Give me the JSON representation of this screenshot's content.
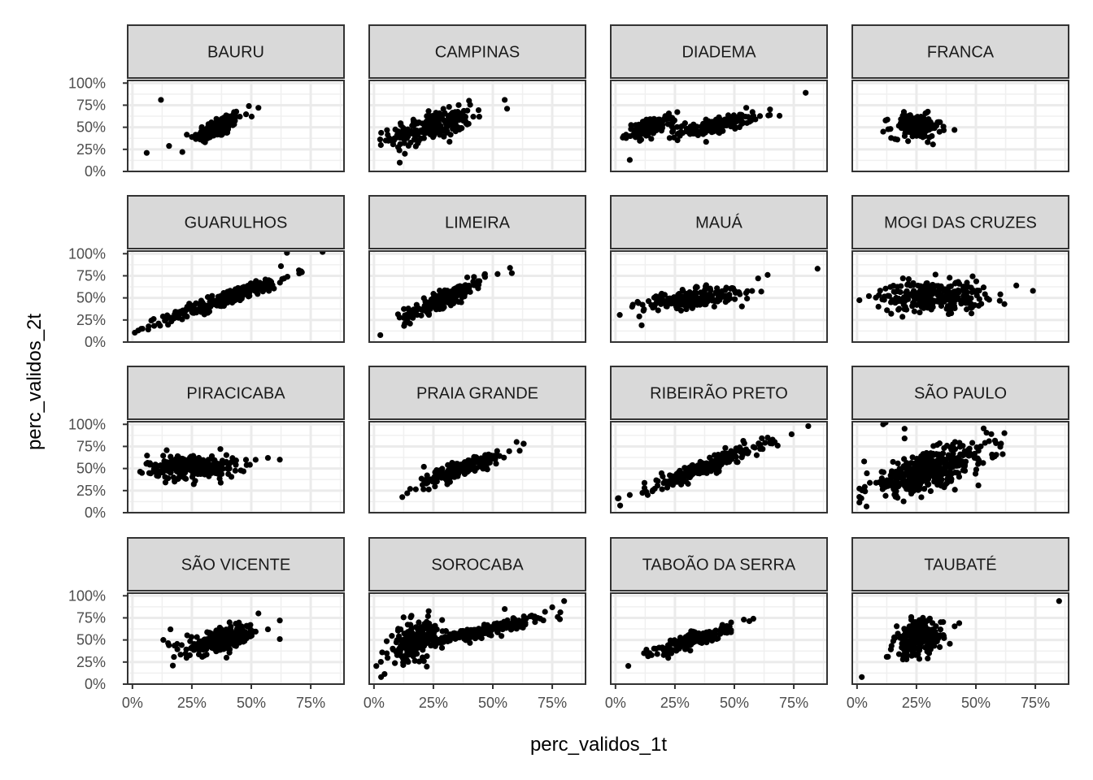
{
  "chart_data": {
    "type": "scatter",
    "facet_layout": "4x4 grid",
    "xlabel": "perc_validos_1t",
    "ylabel": "perc_validos_2t",
    "x_ticks": [
      "0%",
      "25%",
      "50%",
      "75%"
    ],
    "y_ticks": [
      "0%",
      "25%",
      "50%",
      "75%",
      "100%"
    ],
    "xlim": [
      -0.02,
      0.89
    ],
    "ylim": [
      0.0,
      1.03
    ],
    "grid": true,
    "point_color": "#000000",
    "panels": [
      {
        "name": "BAURU",
        "clusters": [
          {
            "cx": 0.36,
            "cy": 0.5,
            "sx": 0.06,
            "sy": 0.1,
            "rho": 0.7,
            "n": 160
          }
        ],
        "outliers": [
          [
            0.06,
            0.21
          ],
          [
            0.12,
            0.81
          ],
          [
            0.21,
            0.22
          ],
          [
            0.49,
            0.74
          ],
          [
            0.53,
            0.72
          ]
        ]
      },
      {
        "name": "CAMPINAS",
        "clusters": [
          {
            "cx": 0.24,
            "cy": 0.5,
            "sx": 0.1,
            "sy": 0.11,
            "rho": 0.6,
            "n": 230
          }
        ],
        "outliers": [
          [
            0.05,
            0.35
          ],
          [
            0.55,
            0.81
          ],
          [
            0.56,
            0.71
          ],
          [
            0.4,
            0.8
          ],
          [
            0.13,
            0.2
          ]
        ]
      },
      {
        "name": "DIADEMA",
        "clusters": [
          {
            "cx": 0.15,
            "cy": 0.5,
            "sx": 0.06,
            "sy": 0.07,
            "rho": 0.6,
            "n": 140
          },
          {
            "cx": 0.42,
            "cy": 0.52,
            "sx": 0.09,
            "sy": 0.07,
            "rho": 0.7,
            "n": 150
          }
        ],
        "outliers": [
          [
            0.06,
            0.13
          ],
          [
            0.8,
            0.89
          ],
          [
            0.69,
            0.63
          ],
          [
            0.55,
            0.72
          ]
        ]
      },
      {
        "name": "FRANCA",
        "clusters": [
          {
            "cx": 0.25,
            "cy": 0.51,
            "sx": 0.06,
            "sy": 0.08,
            "rho": 0.0,
            "n": 170
          }
        ],
        "outliers": [
          [
            0.41,
            0.47
          ],
          [
            0.11,
            0.45
          ]
        ]
      },
      {
        "name": "GUARULHOS",
        "clusters": [
          {
            "cx": 0.4,
            "cy": 0.5,
            "sx": 0.16,
            "sy": 0.16,
            "rho": 0.95,
            "n": 280
          }
        ],
        "outliers": [
          [
            0.8,
            1.02
          ],
          [
            0.65,
            1.01
          ],
          [
            0.11,
            0.21
          ],
          [
            0.71,
            0.8
          ]
        ]
      },
      {
        "name": "LIMEIRA",
        "clusters": [
          {
            "cx": 0.3,
            "cy": 0.5,
            "sx": 0.1,
            "sy": 0.13,
            "rho": 0.9,
            "n": 200
          }
        ],
        "outliers": [
          [
            0.58,
            0.78
          ],
          [
            0.13,
            0.21
          ],
          [
            0.52,
            0.77
          ]
        ]
      },
      {
        "name": "MAUÁ",
        "clusters": [
          {
            "cx": 0.32,
            "cy": 0.49,
            "sx": 0.12,
            "sy": 0.07,
            "rho": 0.5,
            "n": 220
          }
        ],
        "outliers": [
          [
            0.85,
            0.83
          ],
          [
            0.64,
            0.76
          ],
          [
            0.11,
            0.19
          ],
          [
            0.6,
            0.72
          ],
          [
            0.07,
            0.4
          ],
          [
            0.1,
            0.29
          ]
        ]
      },
      {
        "name": "MOGI DAS CRUZES",
        "clusters": [
          {
            "cx": 0.32,
            "cy": 0.52,
            "sx": 0.13,
            "sy": 0.1,
            "rho": 0.1,
            "n": 260
          }
        ],
        "outliers": [
          [
            0.05,
            0.52
          ],
          [
            0.74,
            0.58
          ],
          [
            0.67,
            0.64
          ],
          [
            0.62,
            0.43
          ],
          [
            0.09,
            0.4
          ]
        ]
      },
      {
        "name": "PIRACICABA",
        "clusters": [
          {
            "cx": 0.25,
            "cy": 0.52,
            "sx": 0.11,
            "sy": 0.08,
            "rho": 0.0,
            "n": 250
          }
        ],
        "outliers": [
          [
            0.62,
            0.6
          ],
          [
            0.57,
            0.62
          ],
          [
            0.04,
            0.45
          ],
          [
            0.37,
            0.72
          ]
        ]
      },
      {
        "name": "PRAIA GRANDE",
        "clusters": [
          {
            "cx": 0.37,
            "cy": 0.5,
            "sx": 0.11,
            "sy": 0.12,
            "rho": 0.9,
            "n": 200
          }
        ],
        "outliers": [
          [
            0.6,
            0.8
          ],
          [
            0.63,
            0.78
          ],
          [
            0.14,
            0.22
          ],
          [
            0.21,
            0.52
          ]
        ]
      },
      {
        "name": "RIBEIRÃO PRETO",
        "clusters": [
          {
            "cx": 0.38,
            "cy": 0.52,
            "sx": 0.14,
            "sy": 0.15,
            "rho": 0.93,
            "n": 240
          }
        ],
        "outliers": [
          [
            0.06,
            0.2
          ],
          [
            0.67,
            0.8
          ],
          [
            0.64,
            0.85
          ]
        ]
      },
      {
        "name": "SÃO PAULO",
        "clusters": [
          {
            "cx": 0.3,
            "cy": 0.48,
            "sx": 0.15,
            "sy": 0.17,
            "rho": 0.72,
            "n": 420
          }
        ],
        "outliers": [
          [
            0.11,
            1.0
          ],
          [
            0.12,
            1.02
          ],
          [
            0.2,
            0.95
          ],
          [
            0.03,
            0.58
          ],
          [
            0.62,
            0.9
          ],
          [
            0.04,
            0.07
          ],
          [
            0.2,
            0.84
          ]
        ]
      },
      {
        "name": "SÃO VICENTE",
        "clusters": [
          {
            "cx": 0.38,
            "cy": 0.5,
            "sx": 0.09,
            "sy": 0.09,
            "rho": 0.6,
            "n": 230
          }
        ],
        "outliers": [
          [
            0.17,
            0.21
          ],
          [
            0.16,
            0.62
          ],
          [
            0.62,
            0.72
          ],
          [
            0.62,
            0.51
          ],
          [
            0.57,
            0.62
          ],
          [
            0.13,
            0.5
          ],
          [
            0.53,
            0.8
          ]
        ]
      },
      {
        "name": "SOROCABA",
        "clusters": [
          {
            "cx": 0.17,
            "cy": 0.5,
            "sx": 0.06,
            "sy": 0.14,
            "rho": 0.5,
            "n": 180
          },
          {
            "cx": 0.45,
            "cy": 0.6,
            "sx": 0.15,
            "sy": 0.1,
            "rho": 0.92,
            "n": 220
          }
        ],
        "outliers": [
          [
            0.8,
            0.94
          ],
          [
            0.03,
            0.08
          ],
          [
            0.75,
            0.87
          ],
          [
            0.55,
            0.85
          ]
        ]
      },
      {
        "name": "TABOÃO DA SERRA",
        "clusters": [
          {
            "cx": 0.33,
            "cy": 0.5,
            "sx": 0.09,
            "sy": 0.09,
            "rho": 0.85,
            "n": 180
          }
        ],
        "outliers": [
          [
            0.12,
            0.35
          ],
          [
            0.13,
            0.39
          ],
          [
            0.58,
            0.74
          ],
          [
            0.54,
            0.73
          ]
        ]
      },
      {
        "name": "TAUBATÉ",
        "clusters": [
          {
            "cx": 0.26,
            "cy": 0.51,
            "sx": 0.06,
            "sy": 0.12,
            "rho": 0.3,
            "n": 200
          }
        ],
        "outliers": [
          [
            0.02,
            0.08
          ],
          [
            0.85,
            0.94
          ],
          [
            0.43,
            0.69
          ],
          [
            0.13,
            0.31
          ]
        ]
      }
    ]
  }
}
